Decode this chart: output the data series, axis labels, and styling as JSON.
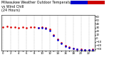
{
  "title_line1": "Milwaukee Weather Outdoor Temperature",
  "title_line2": "vs Wind Chill",
  "title_line3": "(24 Hours)",
  "title_fontsize": 3.5,
  "bg_color": "#ffffff",
  "plot_bg_color": "#ffffff",
  "grid_color": "#aaaaaa",
  "legend_blue": "#0000cc",
  "legend_red": "#cc0000",
  "ylim": [
    -35,
    65
  ],
  "xlim": [
    -0.5,
    23.5
  ],
  "temp_data_x": [
    0,
    1,
    2,
    3,
    4,
    5,
    6,
    7,
    8,
    9,
    10,
    11,
    12,
    13,
    14,
    15,
    16,
    17,
    18,
    19,
    20,
    21,
    22,
    23
  ],
  "temp_data_y": [
    32,
    33,
    31,
    32,
    30,
    31,
    30,
    32,
    31,
    30,
    31,
    30,
    25,
    10,
    -2,
    -12,
    -20,
    -25,
    -28,
    -30,
    -31,
    -32,
    -32,
    -31
  ],
  "wind_data_x": [
    9,
    10,
    11,
    12,
    13,
    14,
    15,
    16,
    17,
    18,
    19,
    20,
    21,
    22,
    23
  ],
  "wind_data_y": [
    29,
    29,
    28,
    22,
    8,
    -4,
    -14,
    -22,
    -27,
    -29,
    -31,
    -32,
    -33,
    -33,
    -32
  ],
  "temp_color": "#dd0000",
  "wind_color": "#0000dd",
  "marker_size": 1.8,
  "yticks": [
    -30,
    -20,
    -10,
    0,
    10,
    20,
    30,
    40,
    50,
    60
  ],
  "xticks": [
    0,
    1,
    2,
    3,
    4,
    5,
    6,
    7,
    8,
    9,
    10,
    11,
    12,
    13,
    14,
    15,
    16,
    17,
    18,
    19,
    20,
    21,
    22,
    23
  ],
  "x_tick_labels": [
    "0",
    "1",
    "2",
    "3",
    "4",
    "5",
    "6",
    "7",
    "8",
    "9",
    "10",
    "11",
    "12",
    "13",
    "14",
    "15",
    "16",
    "17",
    "18",
    "19",
    "20",
    "21",
    "22",
    "23"
  ],
  "grid_x_positions": [
    0,
    2,
    4,
    6,
    8,
    10,
    12,
    14,
    16,
    18,
    20,
    22
  ]
}
